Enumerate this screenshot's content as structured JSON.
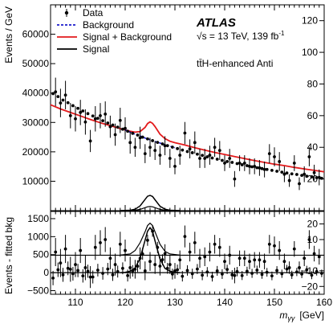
{
  "chart_data": [
    {
      "panel": "main",
      "type": "scatter",
      "ylabel": "Events / GeV",
      "ylim_left": [
        0,
        70000
      ],
      "yticks_left": [
        10000,
        20000,
        30000,
        40000,
        50000,
        60000
      ],
      "ytick_labels_left": [
        "10000",
        "20000",
        "30000",
        "40000",
        "50000",
        "60000"
      ],
      "ylim_right": [
        0,
        130
      ],
      "yticks_right": [
        20,
        40,
        60,
        80,
        100,
        120
      ],
      "ytick_labels_right": [
        "20",
        "40",
        "60",
        "80",
        "100",
        "120"
      ],
      "xlim": [
        105,
        160
      ],
      "annotations": {
        "experiment": "ATLAS",
        "energy": "√s = 13 TeV, 139 fb",
        "energy_sup": "-1",
        "category": "tt̄H-enhanced Anti"
      },
      "legend": {
        "placement": "top-left",
        "entries": [
          {
            "label": "Data",
            "style": "marker",
            "color": "#000000"
          },
          {
            "label": "Background",
            "style": "dashed",
            "color": "#1a1acc"
          },
          {
            "label": "Signal + Background",
            "style": "solid",
            "color": "#e31a1c"
          },
          {
            "label": "Signal",
            "style": "solid",
            "color": "#000000"
          }
        ]
      },
      "series": [
        {
          "name": "Data (right-axis events)",
          "x": [
            106,
            107,
            108,
            109,
            110,
            111,
            112,
            113,
            114,
            115,
            116,
            117,
            118,
            119,
            120,
            121,
            122,
            123,
            124,
            125,
            126,
            127,
            128,
            129,
            130,
            131,
            132,
            133,
            134,
            135,
            136,
            137,
            138,
            139,
            140,
            141,
            142,
            143,
            144,
            145,
            146,
            147,
            148,
            149,
            150,
            151,
            152,
            153,
            154,
            155,
            156,
            157,
            158,
            159
          ],
          "y": [
            75,
            68,
            73,
            60,
            58,
            62,
            56,
            44,
            58,
            60,
            61,
            53,
            48,
            57,
            52,
            43,
            40,
            46,
            36,
            40,
            38,
            35,
            41,
            33,
            28,
            35,
            49,
            39,
            43,
            33,
            33,
            35,
            40,
            38,
            30,
            33,
            20,
            30,
            30,
            28,
            28,
            27,
            26,
            36,
            34,
            31,
            23,
            19,
            30,
            17,
            23,
            34,
            24,
            21
          ],
          "yerr": [
            9,
            9,
            9,
            8,
            8,
            8,
            8,
            7,
            8,
            8,
            8,
            7,
            7,
            8,
            7,
            7,
            6,
            7,
            6,
            6,
            6,
            6,
            6,
            6,
            5,
            6,
            7,
            6,
            7,
            6,
            6,
            6,
            6,
            6,
            5,
            6,
            5,
            5,
            5,
            5,
            5,
            5,
            5,
            6,
            6,
            6,
            5,
            4,
            5,
            4,
            5,
            6,
            5,
            5
          ]
        },
        {
          "name": "Data (left-axis events)",
          "x": [
            105.5,
            106.5,
            107.5,
            108.5,
            109.5,
            110.5,
            111.5,
            112.5,
            113.5,
            114.5,
            115.5,
            116.5,
            117.5,
            118.5,
            119.5,
            120.5,
            121.5,
            122.5,
            123.5,
            124.5,
            125.5,
            126.5,
            127.5,
            128.5,
            129.5,
            130.5,
            131.5,
            132.5,
            133.5,
            134.5,
            135.5,
            136.5,
            137.5,
            138.5,
            139.5,
            140.5,
            141.5,
            142.5,
            143.5,
            144.5,
            145.5,
            146.5,
            147.5,
            148.5,
            149.5,
            150.5,
            151.5,
            152.5,
            153.5,
            154.5,
            155.5,
            156.5,
            157.5,
            158.5,
            159.5
          ],
          "y": [
            39800,
            38800,
            37600,
            36700,
            35700,
            34800,
            33900,
            33000,
            32200,
            31400,
            30600,
            29800,
            29100,
            28400,
            27700,
            27000,
            26300,
            25700,
            25000,
            24400,
            23800,
            23200,
            22700,
            22100,
            21600,
            21100,
            20600,
            20100,
            19700,
            19200,
            18800,
            18300,
            17900,
            17500,
            17100,
            16700,
            16400,
            16000,
            15600,
            15300,
            14900,
            14600,
            14300,
            14000,
            13700,
            13400,
            13100,
            12800,
            12500,
            12300,
            12000,
            11700,
            11500,
            11200,
            11000
          ],
          "yerr": [
            200,
            200,
            190,
            190,
            190,
            180,
            180,
            180,
            180,
            170,
            170,
            170,
            170,
            160,
            160,
            160,
            160,
            160,
            150,
            150,
            150,
            150,
            150,
            150,
            140,
            140,
            140,
            140,
            140,
            130,
            130,
            130,
            130,
            130,
            130,
            130,
            120,
            120,
            120,
            120,
            120,
            120,
            120,
            110,
            110,
            110,
            110,
            110,
            110,
            110,
            100,
            100,
            100,
            100,
            100
          ]
        },
        {
          "name": "Background",
          "x": [
            120,
            121,
            122,
            123,
            124,
            125,
            126,
            127,
            128,
            129,
            130
          ],
          "y": [
            27400,
            26700,
            26000,
            25400,
            24700,
            24100,
            23500,
            23000,
            22400,
            21900,
            21400
          ]
        },
        {
          "name": "Signal + Background",
          "x": [
            105,
            107,
            109,
            111,
            113,
            115,
            117,
            119,
            121,
            122,
            123,
            124,
            124.5,
            125,
            125.5,
            126,
            127,
            128,
            129,
            130,
            132,
            134,
            136,
            138,
            140,
            142,
            144,
            146,
            148,
            150,
            152,
            154,
            156,
            158,
            160
          ],
          "y": [
            36000,
            34600,
            33400,
            32200,
            31000,
            29900,
            28900,
            27900,
            27000,
            26700,
            26900,
            28300,
            29600,
            30200,
            29700,
            28600,
            26000,
            24500,
            23600,
            23100,
            22300,
            21400,
            20600,
            19800,
            19100,
            18400,
            17700,
            17000,
            16400,
            15800,
            15300,
            14700,
            14200,
            13700,
            13200
          ]
        },
        {
          "name": "Signal",
          "x": [
            119,
            120,
            121,
            122,
            123,
            124,
            124.5,
            125,
            125.5,
            126,
            127,
            128,
            129,
            130,
            131
          ],
          "y": [
            0,
            50,
            150,
            500,
            1600,
            3800,
            4900,
            5200,
            4800,
            3700,
            1500,
            500,
            150,
            50,
            0
          ]
        },
        {
          "name": "Signal (small)",
          "x": [
            119,
            121,
            122,
            123,
            124,
            124.5,
            125,
            125.5,
            126,
            127,
            128,
            129,
            131
          ],
          "y": [
            0,
            50,
            150,
            450,
            1000,
            1300,
            1400,
            1300,
            1000,
            450,
            150,
            50,
            0
          ]
        }
      ]
    },
    {
      "panel": "ratio",
      "type": "scatter",
      "xlabel": "m",
      "xlabel_sub": "γγ",
      "xlabel_unit": "[GeV]",
      "ylabel": "Events - fitted bkg",
      "xlim": [
        105,
        160
      ],
      "xticks": [
        110,
        120,
        130,
        140,
        150,
        160
      ],
      "xtick_labels": [
        "110",
        "120",
        "130",
        "140",
        "150",
        "160"
      ],
      "ylim_left": [
        -600,
        1700
      ],
      "yticks_left": [
        -500,
        0,
        500,
        1000,
        1500
      ],
      "ytick_labels_left": [
        "−500",
        "0",
        "500",
        "1000",
        "1500"
      ],
      "ylim_right": [
        -25,
        28
      ],
      "yticks_right": [
        -20,
        -10,
        10,
        20
      ],
      "ytick_labels_right": [
        "−20",
        "−10",
        "10",
        "20"
      ],
      "series": [
        {
          "name": "Residuals (left-axis)",
          "x": [
            105.5,
            106.5,
            107.5,
            108.5,
            109.5,
            110.5,
            111.5,
            112.5,
            113.5,
            114.5,
            115.5,
            116.5,
            117.5,
            118.5,
            119.5,
            120.5,
            121.5,
            122.5,
            123.5,
            124.5,
            125.5,
            126.5,
            127.5,
            128.5,
            129.5,
            130.5,
            131.5,
            132.5,
            133.5,
            134.5,
            135.5,
            136.5,
            137.5,
            138.5,
            139.5,
            140.5,
            141.5,
            142.5,
            143.5,
            144.5,
            145.5,
            146.5,
            147.5,
            148.5,
            149.5,
            150.5,
            151.5,
            152.5,
            153.5,
            154.5,
            155.5,
            156.5,
            157.5,
            158.5,
            159.5
          ],
          "y": [
            -150,
            80,
            -60,
            120,
            -30,
            60,
            -90,
            40,
            -120,
            70,
            -20,
            100,
            -60,
            30,
            120,
            -80,
            50,
            180,
            520,
            900,
            1150,
            700,
            360,
            120,
            -40,
            80,
            -100,
            60,
            -30,
            100,
            -70,
            20,
            -110,
            50,
            -40,
            90,
            -60,
            30,
            -80,
            40,
            -20,
            70,
            -50,
            10,
            -90,
            60,
            -30,
            100,
            -60,
            20,
            -40,
            80,
            -70,
            30,
            -20
          ],
          "yerr": [
            200,
            200,
            195,
            190,
            190,
            185,
            185,
            180,
            180,
            175,
            175,
            170,
            170,
            165,
            165,
            165,
            160,
            160,
            160,
            155,
            155,
            155,
            150,
            150,
            150,
            145,
            145,
            145,
            140,
            140,
            140,
            135,
            135,
            135,
            135,
            130,
            130,
            130,
            125,
            125,
            125,
            125,
            120,
            120,
            120,
            120,
            115,
            115,
            115,
            115,
            110,
            110,
            110,
            110,
            105
          ]
        },
        {
          "name": "Residuals (right-axis)",
          "x": [
            106,
            107,
            108,
            109,
            110,
            111,
            112,
            113,
            114,
            115,
            116,
            117,
            118,
            119,
            120,
            121,
            122,
            123,
            124,
            125,
            126,
            127,
            128,
            129,
            130,
            131,
            132,
            133,
            134,
            135,
            136,
            137,
            138,
            139,
            140,
            141,
            142,
            143,
            144,
            145,
            146,
            147,
            148,
            149,
            150,
            151,
            152,
            153,
            154,
            155,
            156,
            157,
            158,
            159
          ],
          "y": [
            2,
            -5,
            4,
            -9,
            -6,
            3,
            -8,
            -14,
            5,
            8,
            10,
            -2,
            -6,
            7,
            3,
            -8,
            -9,
            -2,
            -10,
            -4,
            -6,
            -7,
            1,
            -6,
            -10,
            -3,
            12,
            2,
            8,
            -2,
            -1,
            2,
            7,
            5,
            -4,
            0,
            -13,
            -2,
            -2,
            -4,
            -3,
            -3,
            -4,
            7,
            6,
            3,
            -4,
            -8,
            4,
            -8,
            -2,
            10,
            1,
            -1
          ],
          "yerr": [
            9,
            9,
            9,
            8,
            8,
            8,
            8,
            7,
            8,
            8,
            8,
            7,
            7,
            8,
            7,
            7,
            6,
            7,
            6,
            6,
            6,
            6,
            6,
            6,
            5,
            6,
            7,
            6,
            7,
            6,
            6,
            6,
            6,
            6,
            5,
            6,
            5,
            5,
            5,
            5,
            5,
            5,
            5,
            6,
            6,
            6,
            5,
            4,
            5,
            4,
            5,
            6,
            5,
            5
          ]
        },
        {
          "name": "Signal (left-axis)",
          "x": [
            119,
            120,
            121,
            122,
            123,
            124,
            124.5,
            125,
            125.5,
            126,
            127,
            128,
            129,
            130,
            131
          ],
          "y": [
            0,
            10,
            40,
            130,
            400,
            900,
            1150,
            1250,
            1150,
            880,
            380,
            120,
            40,
            10,
            0
          ]
        },
        {
          "name": "Signal (right-axis)",
          "x": [
            119,
            121,
            122,
            123,
            124,
            124.5,
            125,
            125.5,
            126,
            127,
            128,
            129,
            131
          ],
          "y": [
            0,
            0.8,
            3,
            8,
            15,
            19,
            20.5,
            19,
            15,
            7,
            2.5,
            0.8,
            0
          ]
        }
      ]
    }
  ]
}
